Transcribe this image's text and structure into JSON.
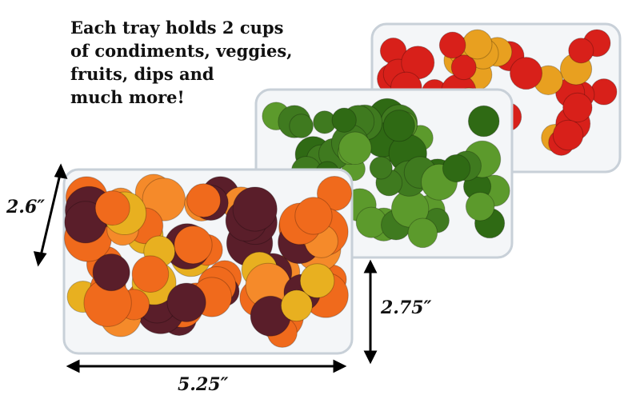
{
  "caption": {
    "lines": [
      "Each tray holds 2 cups",
      "of condiments, veggies,",
      "fruits, dips and",
      "much more!"
    ]
  },
  "dimensions": {
    "depth": "2.6″",
    "height": "2.75″",
    "width": "5.25″"
  },
  "colors": {
    "tomato_red": "#d8201a",
    "tomato_yellow": "#e8a020",
    "broccoli": "#3f7a1f",
    "carrot_orange": "#f06a1c",
    "carrot_purple": "#5a1e2a",
    "tray_edge": "#c8d0d8"
  }
}
